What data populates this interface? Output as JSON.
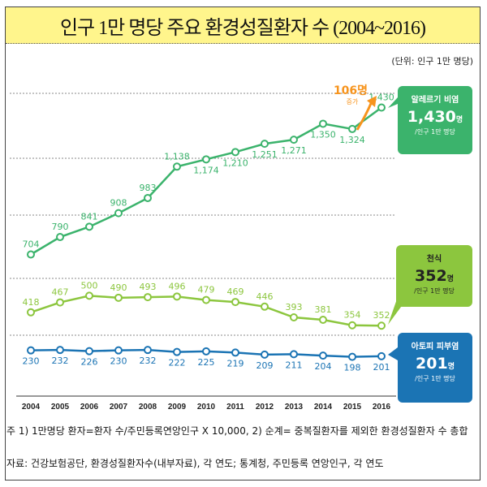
{
  "title": "인구 1만 명당 주요 환경성질환자 수 (2004~2016)",
  "unit": "(단위: 인구 1만 명당)",
  "chart_data": {
    "type": "line",
    "title": "인구 1만 명당 주요 환경성질환자 수 (2004~2016)",
    "categories": [
      "2004",
      "2005",
      "2006",
      "2007",
      "2008",
      "2009",
      "2010",
      "2011",
      "2012",
      "2013",
      "2014",
      "2015",
      "2016"
    ],
    "series": [
      {
        "name": "알레르기 비염",
        "color": "#3bb36c",
        "values": [
          704,
          790,
          841,
          908,
          983,
          1138,
          1174,
          1210,
          1251,
          1271,
          1350,
          1324,
          1430
        ],
        "labels": [
          "704",
          "790",
          "841",
          "908",
          "983",
          "1,138",
          "1,174",
          "1,210",
          "1,251",
          "1,271",
          "1,350",
          "1,324",
          "1,430"
        ]
      },
      {
        "name": "천식",
        "color": "#8cc63e",
        "values": [
          418,
          467,
          500,
          490,
          493,
          496,
          479,
          469,
          446,
          393,
          381,
          354,
          352
        ],
        "labels": [
          "418",
          "467",
          "500",
          "490",
          "493",
          "496",
          "479",
          "469",
          "446",
          "393",
          "381",
          "354",
          "352"
        ]
      },
      {
        "name": "아토피 피부염",
        "color": "#1b74b4",
        "values": [
          230,
          232,
          226,
          230,
          232,
          222,
          225,
          219,
          209,
          211,
          204,
          198,
          201
        ],
        "labels": [
          "230",
          "232",
          "226",
          "230",
          "232",
          "222",
          "225",
          "219",
          "209",
          "211",
          "204",
          "198",
          "201"
        ]
      }
    ],
    "annotation": {
      "value": "106",
      "unit": "명",
      "text": "증가",
      "color": "#f7941d"
    },
    "ylim": [
      0,
      1450
    ],
    "grid": true
  },
  "callouts": [
    {
      "name": "알레르기 비염",
      "value": "1,430",
      "unit": "명",
      "sub": "/인구 1만 명당",
      "color": "#3bb36c",
      "icon": "nose-icon"
    },
    {
      "name": "천식",
      "value": "352",
      "unit": "명",
      "sub": "/인구 1만 명당",
      "color": "#8cc63e",
      "icon": "mask-icon"
    },
    {
      "name": "아토피 피부염",
      "value": "201",
      "unit": "명",
      "sub": "/인구 1만 명당",
      "color": "#1b74b4",
      "icon": "skin-icon"
    }
  ],
  "notes": {
    "note": "주 1) 1만명당  환자=환자 수/주민등록연앙인구  X 10,000, 2) 순계= 중복질환자를 제외한 환경성질환자 수 총합",
    "source": "자료: 건강보험공단, 환경성질환자수(내부자료), 각 연도; 통계청, 주민등록 연앙인구, 각 연도"
  }
}
